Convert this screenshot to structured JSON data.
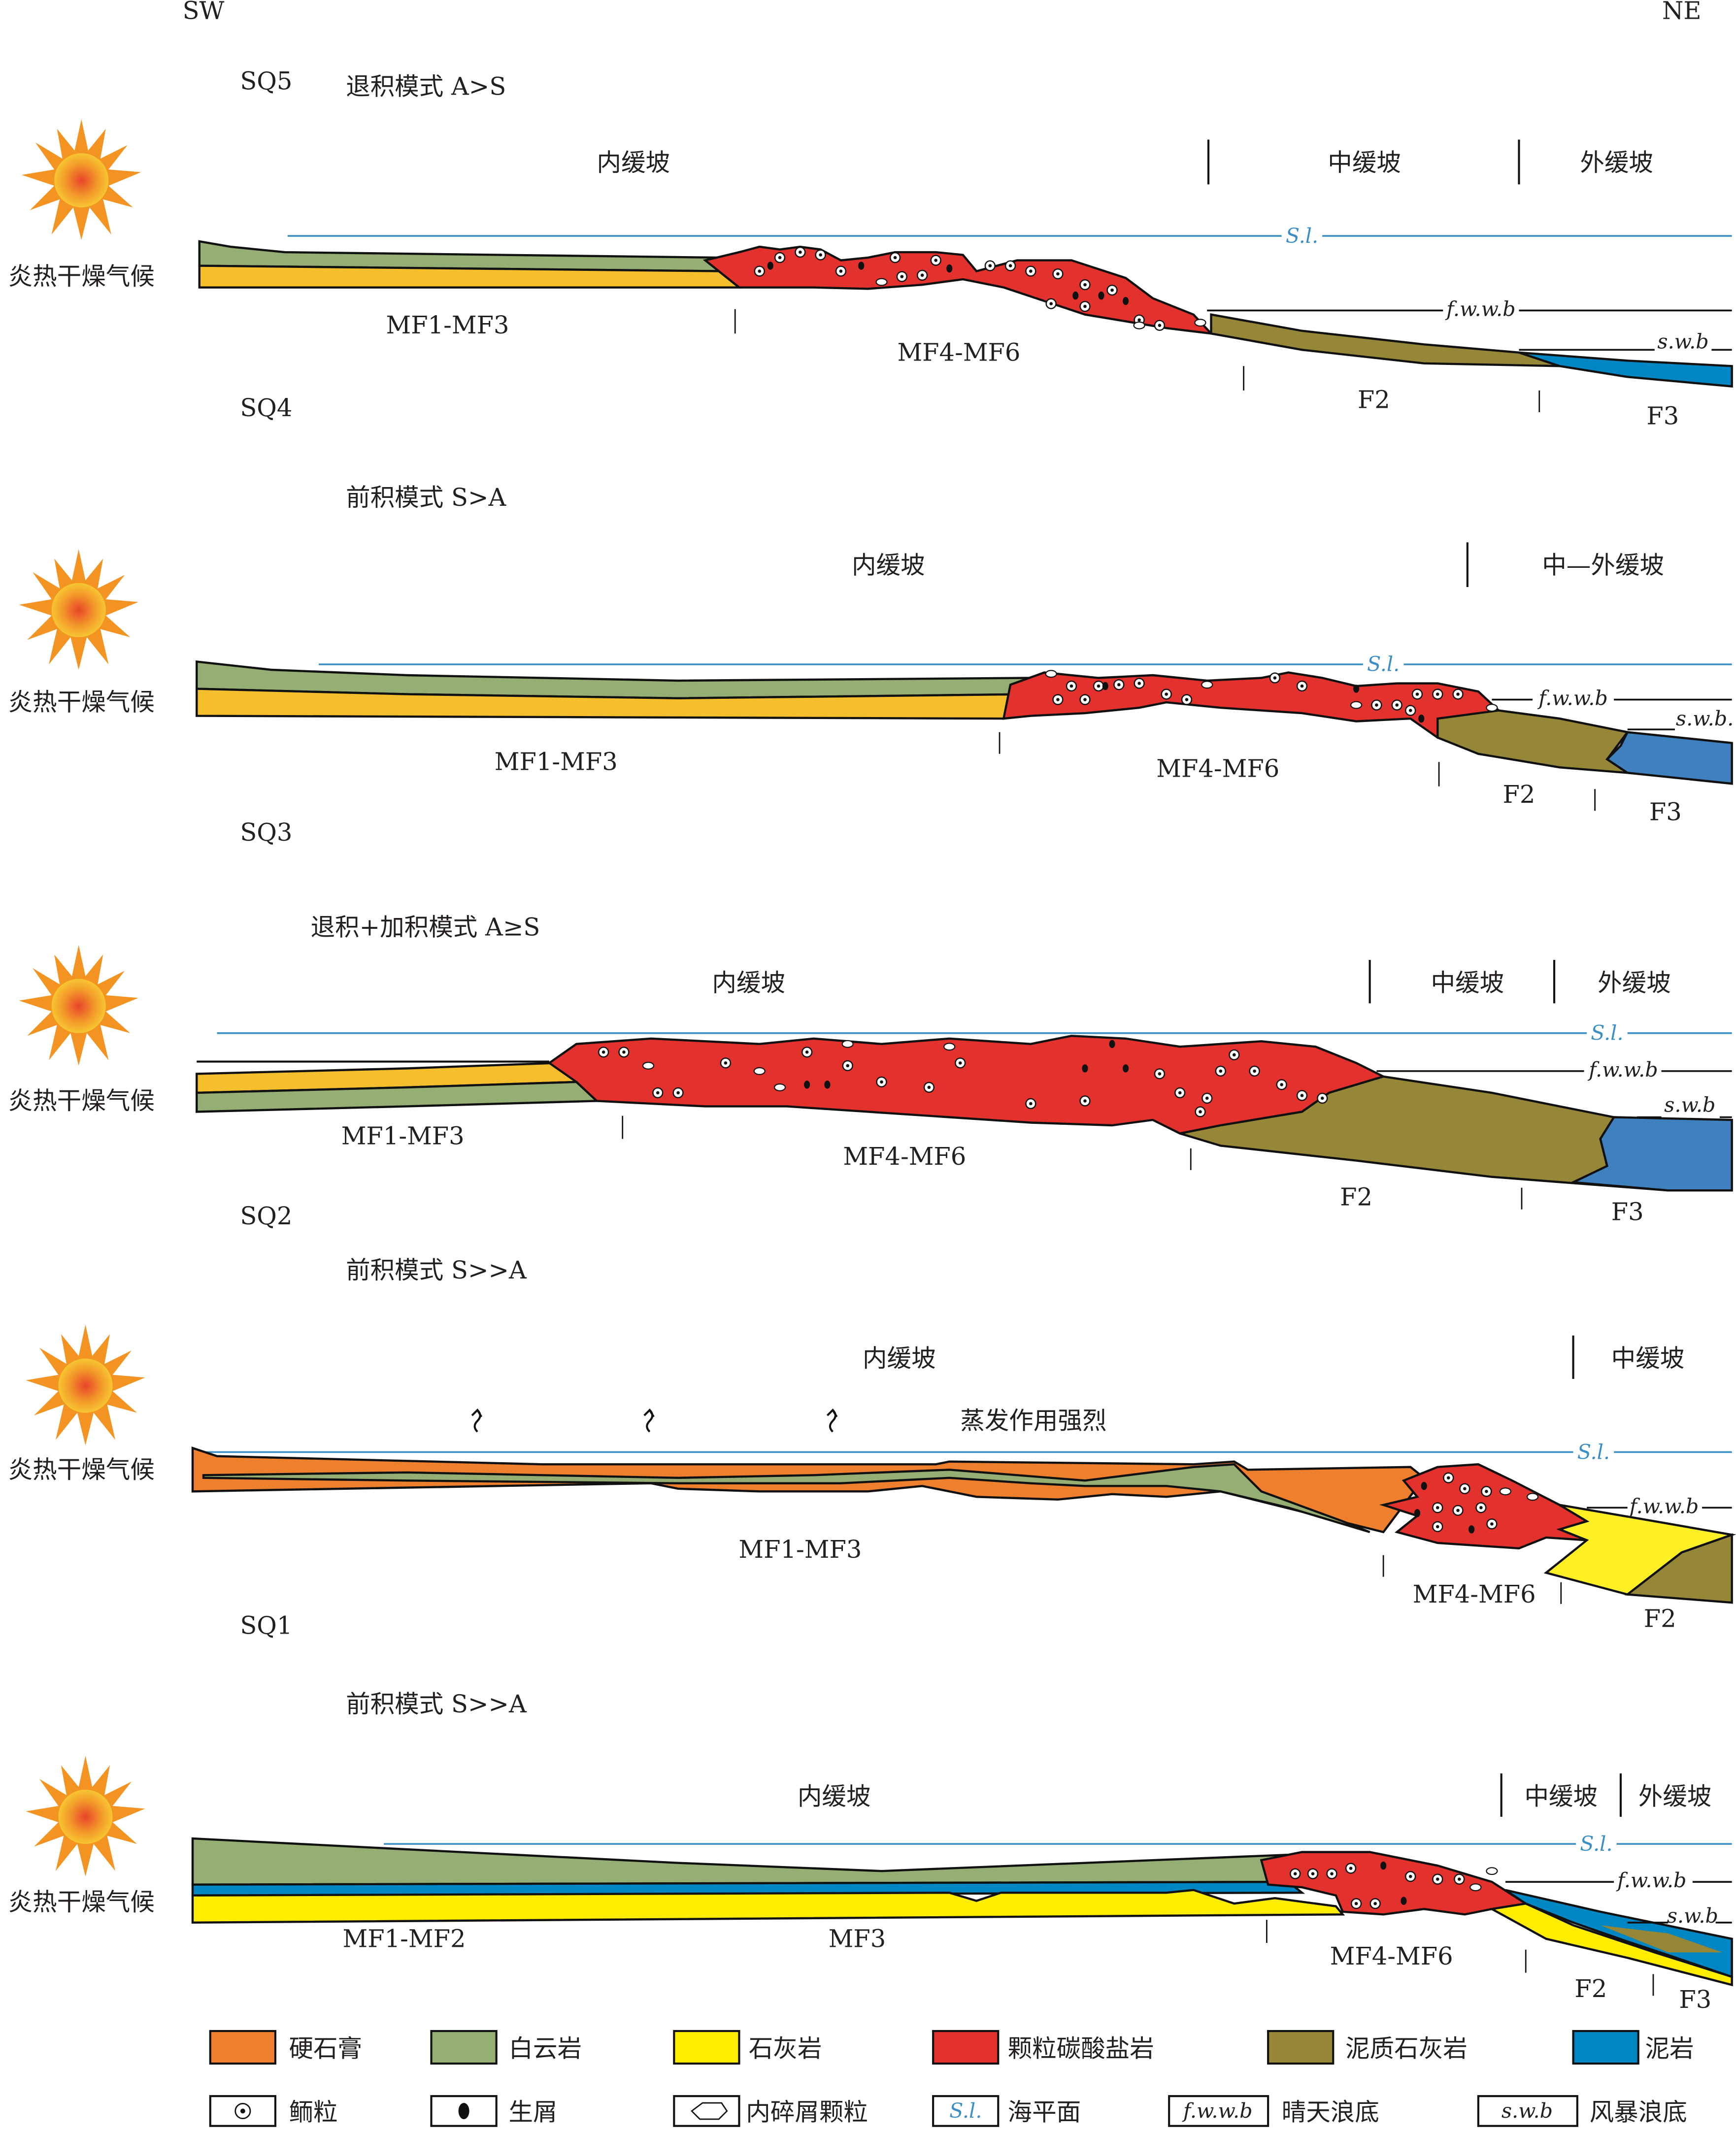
{
  "orientation": {
    "left": "SW",
    "right": "NE"
  },
  "colors": {
    "gypsum": "#EE7F2D",
    "dolomite": "#94AE73",
    "limestone": "#FFED00",
    "limestone_gold": "#F4BE2C",
    "grain_carbonate": "#E3312D",
    "marly_limestone": "#958737",
    "mudstone": "#0086C3",
    "mudstone_sq3": "#3F80BE",
    "sea_level": "#3c8fc4"
  },
  "panels": [
    {
      "sequence": "SQ5",
      "mode": "退积模式  A>S",
      "climate": "炎热干燥气候",
      "zones": [
        "内缓坡",
        "中缓坡",
        "外缓坡"
      ],
      "facies": [
        "MF1-MF3",
        "MF4-MF6",
        "F2",
        "F3"
      ],
      "markers": {
        "sl": "S.l.",
        "fwwb": "f.w.w.b",
        "swb": "s.w.b"
      }
    },
    {
      "sequence": "SQ4",
      "mode": "前积模式  S>A",
      "climate": "炎热干燥气候",
      "zones": [
        "内缓坡",
        "中—外缓坡"
      ],
      "facies": [
        "MF1-MF3",
        "MF4-MF6",
        "F2",
        "F3"
      ],
      "markers": {
        "sl": "S.l.",
        "fwwb": "f.w.w.b",
        "swb": "s.w.b."
      }
    },
    {
      "sequence": "SQ3",
      "mode": "退积+加积模式    A≥S",
      "climate": "炎热干燥气候",
      "zones": [
        "内缓坡",
        "中缓坡",
        "外缓坡"
      ],
      "facies": [
        "MF1-MF3",
        "MF4-MF6",
        "F2",
        "F3"
      ],
      "markers": {
        "sl": "S.l.",
        "fwwb": "f.w.w.b",
        "swb": "s.w.b"
      }
    },
    {
      "sequence": "SQ2",
      "mode": "前积模式   S>>A",
      "climate": "炎热干燥气候",
      "zones": [
        "内缓坡",
        "中缓坡"
      ],
      "note": "蒸发作用强烈",
      "facies": [
        "MF1-MF3",
        "MF4-MF6",
        "F2"
      ],
      "markers": {
        "sl": "S.l.",
        "fwwb": "f.w.w.b"
      }
    },
    {
      "sequence": "SQ1",
      "mode": "前积模式   S>>A",
      "climate": "炎热干燥气候",
      "zones": [
        "内缓坡",
        "中缓坡",
        "外缓坡"
      ],
      "facies": [
        "MF1-MF2",
        "MF3",
        "MF4-MF6",
        "F2",
        "F3"
      ],
      "markers": {
        "sl": "S.l.",
        "fwwb": "f.w.w.b",
        "swb": "s.w.b"
      }
    }
  ],
  "legend": {
    "lithology": [
      "硬石膏",
      "白云岩",
      "石灰岩",
      "颗粒碳酸盐岩",
      "泥质石灰岩",
      "泥岩"
    ],
    "symbols": [
      {
        "key": "",
        "label": "鲕粒"
      },
      {
        "key": "",
        "label": "生屑"
      },
      {
        "key": "",
        "label": "内碎屑颗粒"
      },
      {
        "key": "S.l.",
        "label": "海平面"
      },
      {
        "key": "f.w.w.b",
        "label": "晴天浪底"
      },
      {
        "key": "s.w.b",
        "label": "风暴浪底"
      }
    ]
  }
}
